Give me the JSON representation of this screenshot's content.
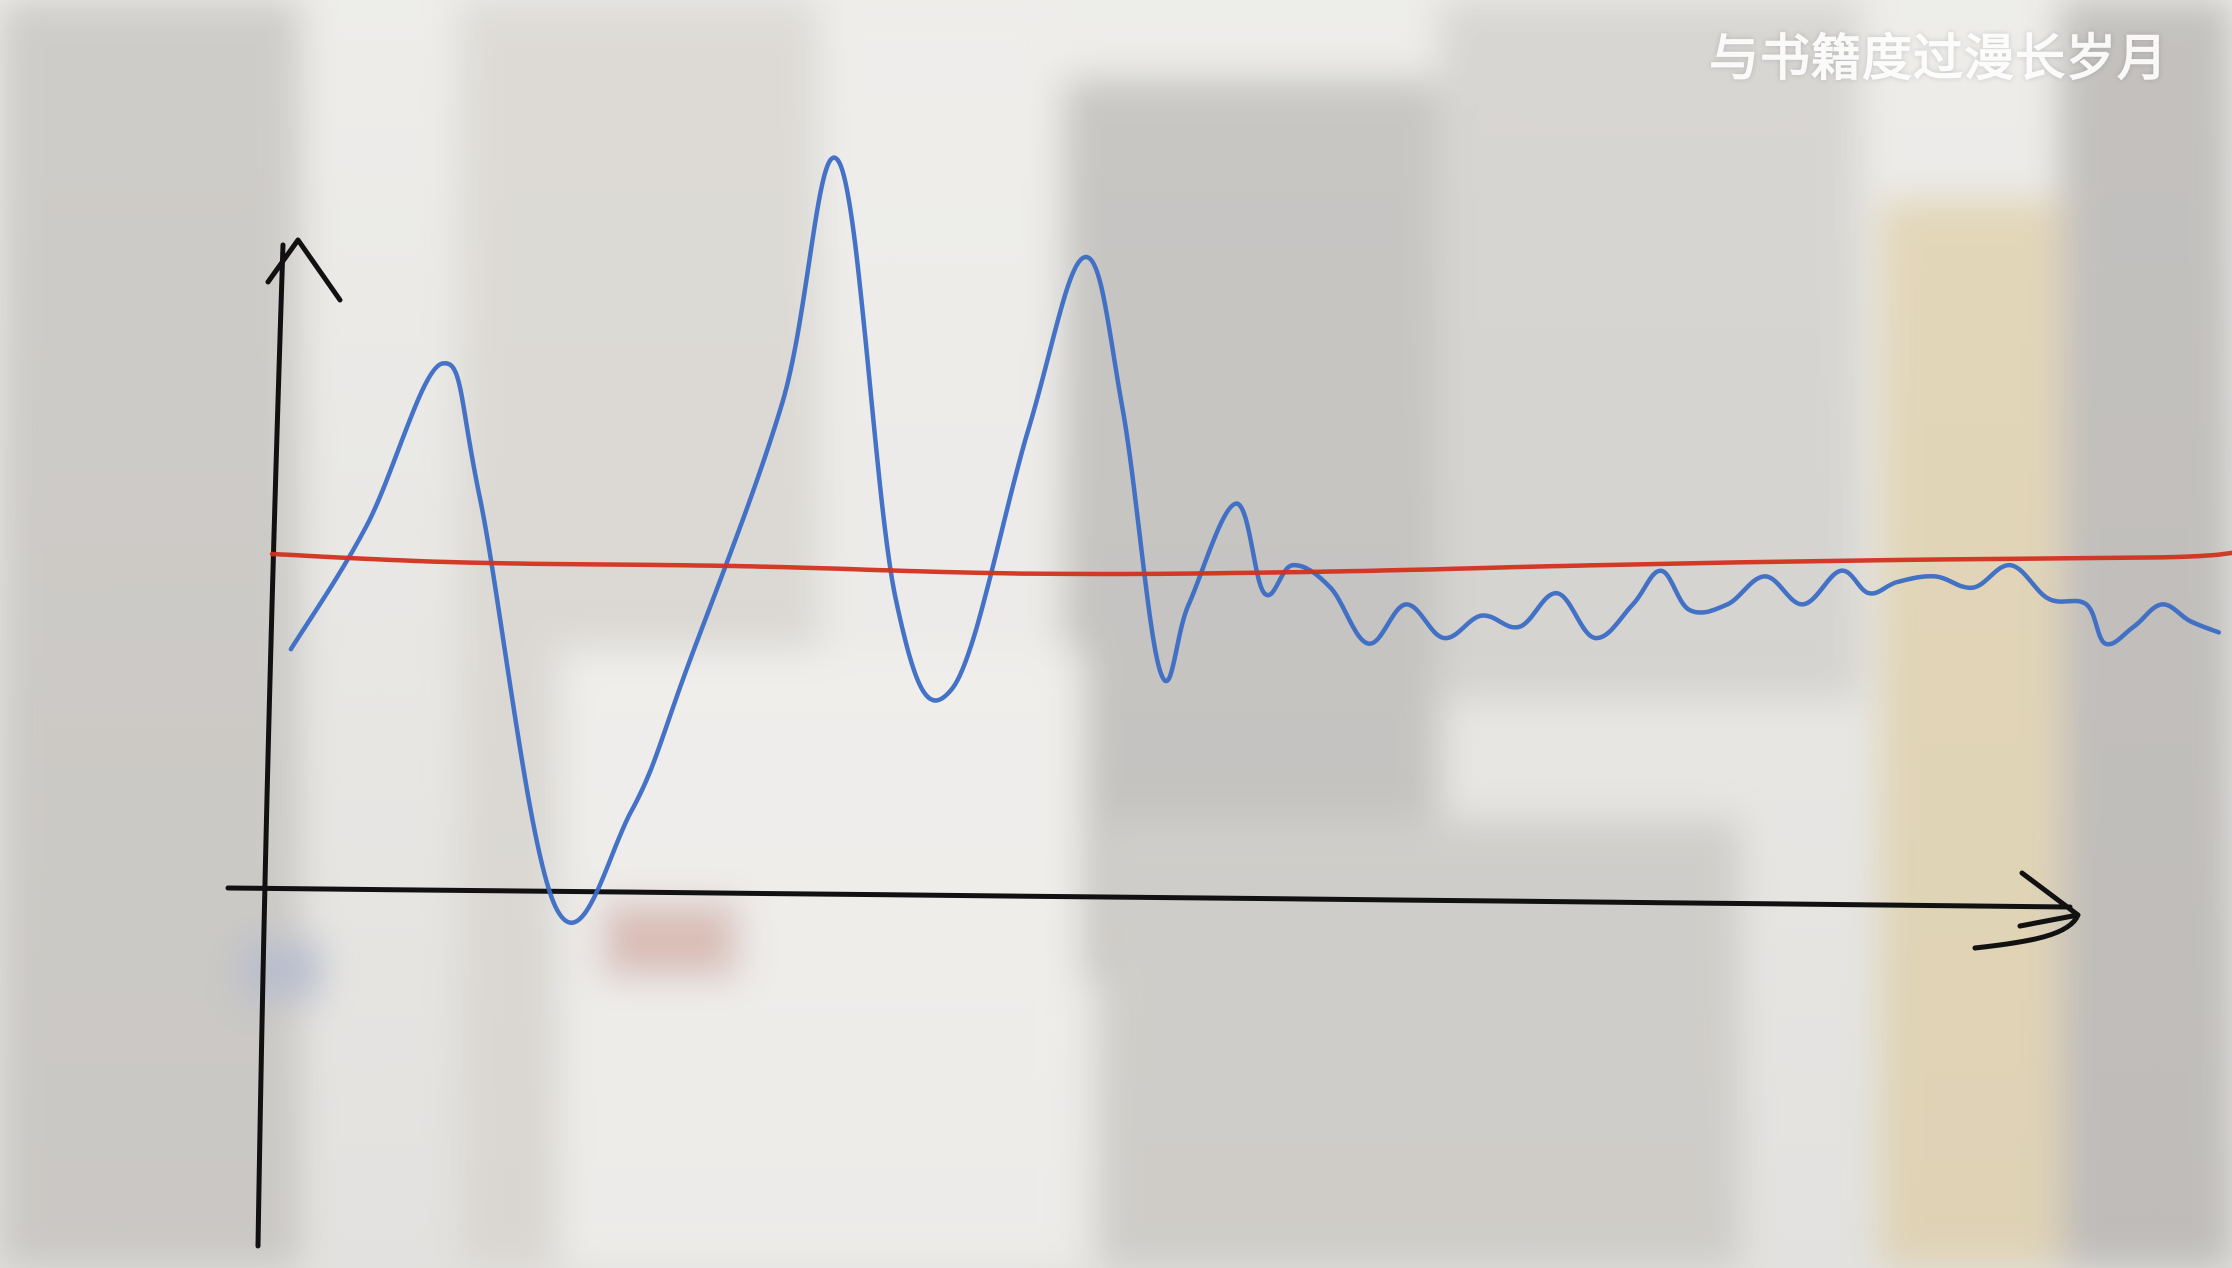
{
  "watermark": "与书籍度过漫长岁月",
  "colors": {
    "axis": "#111111",
    "series_fluctuating": "#3a6bc4",
    "series_baseline": "#d2321e",
    "background_tint": "#d9d8d5"
  },
  "chart_data": {
    "type": "line",
    "title": "",
    "xlabel": "",
    "ylabel": "",
    "axis_style": "hand-drawn arrows",
    "xlim": [
      0,
      100
    ],
    "ylim": [
      0,
      100
    ],
    "grid": false,
    "legend": "none",
    "series": [
      {
        "key": "fluctuating",
        "color": "#3a6bc4",
        "x": [
          1,
          5,
          9,
          11,
          15,
          19,
          22,
          27,
          30,
          33,
          36,
          40,
          43,
          45,
          47,
          48.5,
          51,
          52.5,
          54,
          56,
          58,
          60,
          62,
          64,
          66,
          68,
          70,
          72,
          73.5,
          75,
          77,
          79,
          81,
          83,
          84.5,
          86,
          88,
          90,
          92,
          94,
          96,
          97,
          98.5,
          100,
          101.5,
          103
        ],
        "y": [
          43,
          65,
          94,
          70,
          -3,
          14,
          40,
          87,
          130,
          52,
          36,
          82,
          113,
          86,
          39,
          51,
          69,
          53,
          58,
          54,
          44,
          51,
          45,
          49,
          47,
          53,
          45,
          51,
          57,
          50,
          51,
          56,
          51,
          57,
          53,
          55,
          56,
          54,
          58,
          52,
          51,
          44,
          47,
          51,
          48,
          46
        ]
      },
      {
        "key": "baseline",
        "color": "#d2321e",
        "x": [
          0,
          10,
          25,
          40,
          55,
          70,
          85,
          100,
          104
        ],
        "y": [
          60,
          58.5,
          57.8,
          56.5,
          56.8,
          58,
          58.9,
          59.4,
          60.3
        ]
      }
    ]
  }
}
